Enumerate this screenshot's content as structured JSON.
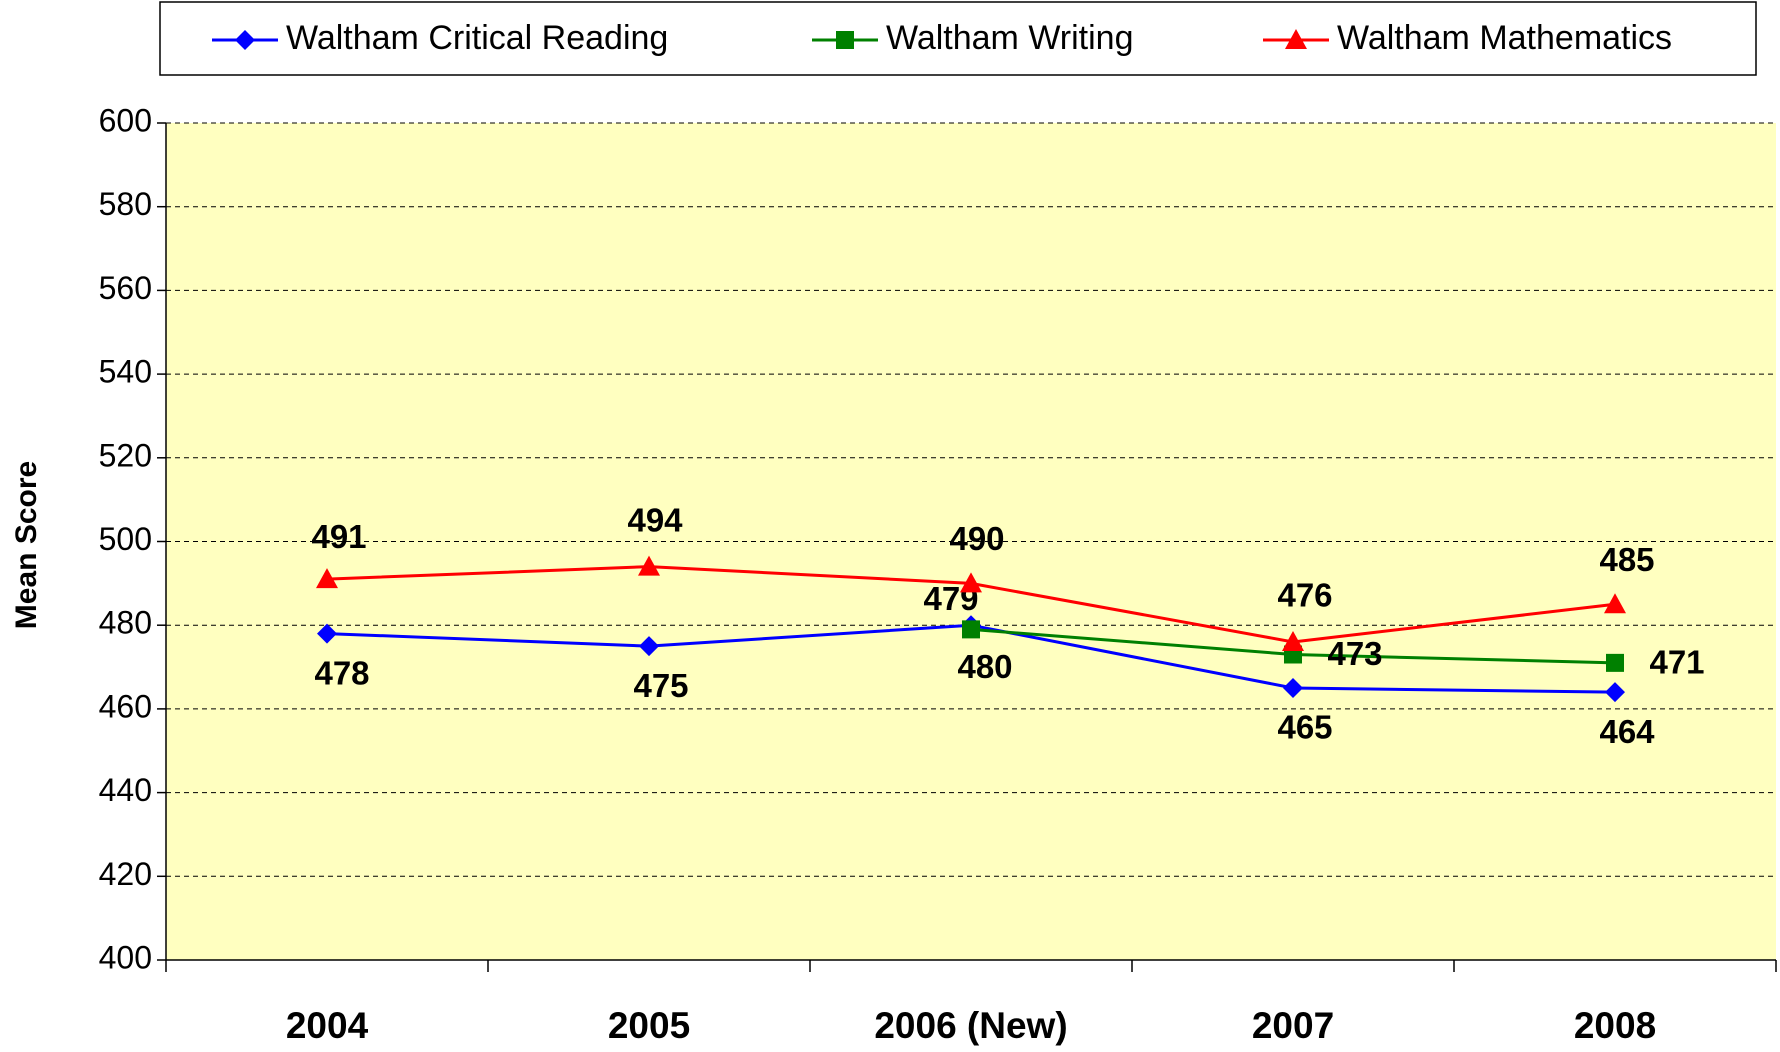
{
  "chart_data": {
    "type": "line",
    "y_label": "Mean Score",
    "categories": [
      "2004",
      "2005",
      "2006 (New)",
      "2007",
      "2008"
    ],
    "series": [
      {
        "name": "Waltham Critical Reading",
        "color": "#0000ff",
        "marker": "diamond",
        "values": [
          478,
          475,
          480,
          465,
          464
        ]
      },
      {
        "name": "Waltham Writing",
        "color": "#008000",
        "marker": "square",
        "values": [
          null,
          null,
          479,
          473,
          471
        ]
      },
      {
        "name": "Waltham Mathematics",
        "color": "#ff0000",
        "marker": "triangle",
        "values": [
          491,
          494,
          490,
          476,
          485
        ]
      }
    ],
    "ylim": [
      400,
      600
    ],
    "yticks": [
      400,
      420,
      440,
      460,
      480,
      500,
      520,
      540,
      560,
      580,
      600
    ],
    "grid": true,
    "legend": "top",
    "plot_background": "#ffffc0"
  }
}
